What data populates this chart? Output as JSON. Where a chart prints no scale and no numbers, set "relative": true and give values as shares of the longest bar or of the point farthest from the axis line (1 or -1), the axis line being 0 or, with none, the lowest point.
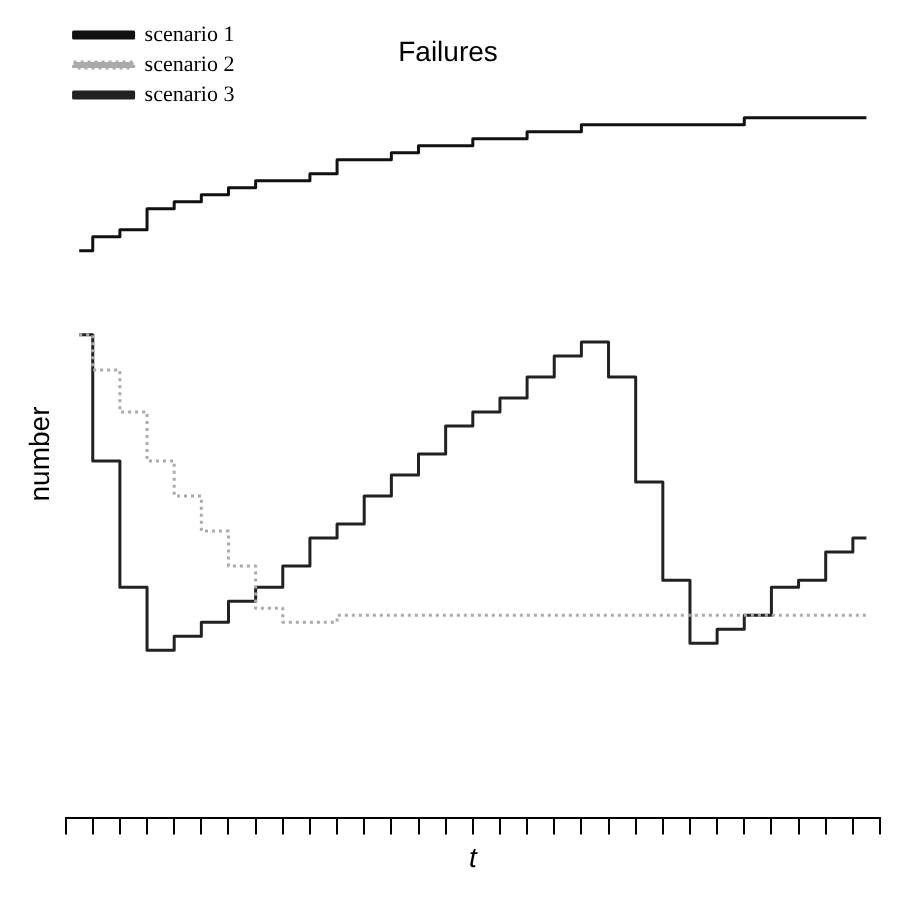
{
  "chart_data": {
    "type": "step",
    "title": "Failures",
    "xlabel": "t",
    "ylabel": "number",
    "relative": true,
    "tick_labels": false,
    "legend": "top left",
    "grid": false,
    "categories": [
      null,
      null,
      null,
      null,
      null,
      null,
      null,
      null,
      null,
      null,
      null,
      null,
      null,
      null,
      null,
      null,
      null,
      null,
      null,
      null,
      null,
      null,
      null,
      null,
      null,
      null,
      null,
      null,
      null,
      null
    ],
    "series": [
      {
        "name": "scenario 1",
        "color": "#111111",
        "line_style": "solid",
        "values": [
          0.81,
          0.83,
          0.84,
          0.87,
          0.88,
          0.89,
          0.9,
          0.91,
          0.91,
          0.92,
          0.94,
          0.94,
          0.95,
          0.96,
          0.96,
          0.97,
          0.97,
          0.98,
          0.98,
          0.99,
          0.99,
          0.99,
          0.99,
          0.99,
          0.99,
          1,
          1,
          1,
          1,
          1
        ]
      },
      {
        "name": "scenario 2",
        "color": "#aaaaaa",
        "line_style": "dotted",
        "values": [
          0.69,
          0.64,
          0.58,
          0.51,
          0.46,
          0.41,
          0.36,
          0.3,
          0.28,
          0.28,
          0.29,
          0.29,
          0.29,
          0.29,
          0.29,
          0.29,
          0.29,
          0.29,
          0.29,
          0.29,
          0.29,
          0.29,
          0.29,
          0.29,
          0.29,
          0.29,
          0.29,
          0.29,
          0.29,
          0.29
        ]
      },
      {
        "name": "scenario 3",
        "color": "#222222",
        "line_style": "solid",
        "values": [
          0.69,
          0.51,
          0.33,
          0.24,
          0.26,
          0.28,
          0.31,
          0.33,
          0.36,
          0.4,
          0.42,
          0.46,
          0.49,
          0.52,
          0.56,
          0.58,
          0.6,
          0.63,
          0.66,
          0.68,
          0.63,
          0.48,
          0.34,
          0.25,
          0.27,
          0.29,
          0.33,
          0.34,
          0.38,
          0.4
        ]
      }
    ]
  }
}
